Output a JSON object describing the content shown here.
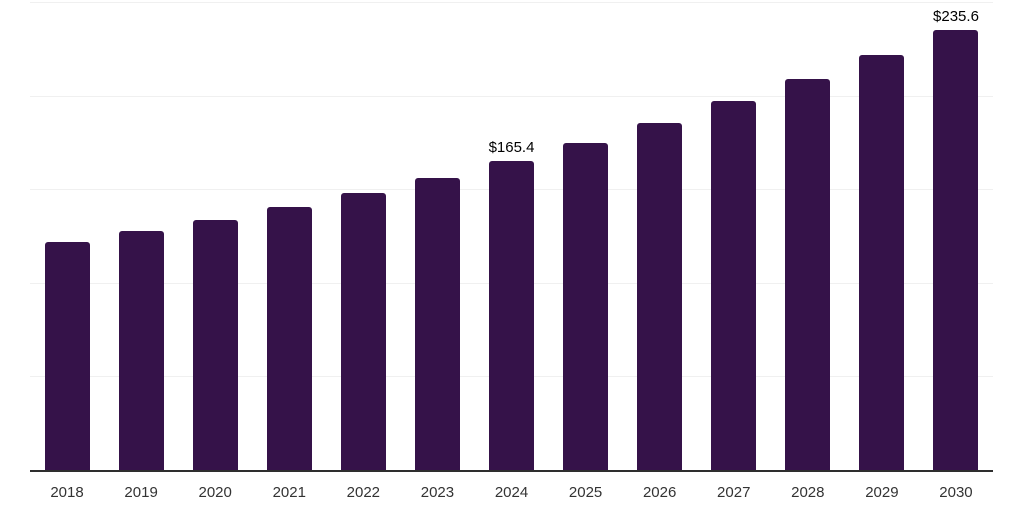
{
  "chart_data": {
    "type": "bar",
    "title": "",
    "xlabel": "",
    "ylabel": "",
    "categories": [
      "2018",
      "2019",
      "2020",
      "2021",
      "2022",
      "2023",
      "2024",
      "2025",
      "2026",
      "2027",
      "2028",
      "2029",
      "2030"
    ],
    "values": [
      122.6,
      128.3,
      134.3,
      141.1,
      148.6,
      156.5,
      165.4,
      175.4,
      186.1,
      197.4,
      209.4,
      222.1,
      235.6
    ],
    "visible_labels": {
      "2024": "$165.4",
      "2030": "$235.6"
    },
    "ylim": [
      0,
      250
    ],
    "grid_step": 50,
    "grid": "horizontal-only",
    "legend": "none",
    "y_tick_labels_shown": false,
    "bar_color": "#351249",
    "axis_line_color": "#2e2e2e",
    "gridline_color": "#f0f0f0",
    "data_label_color": "#000000",
    "tick_label_color": "#333333"
  }
}
